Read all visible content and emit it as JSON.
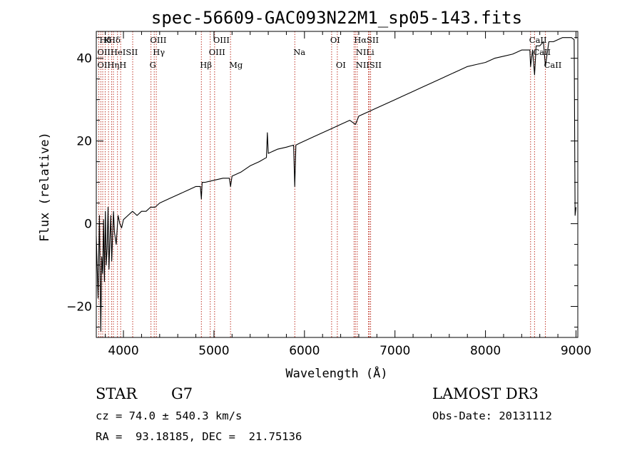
{
  "chart_data": {
    "type": "line",
    "title": "spec-56609-GAC093N22M1_sp05-143.fits",
    "xlabel": "Wavelength (Å)",
    "ylabel": "Flux (relative)",
    "xlim": [
      3700,
      9020
    ],
    "ylim": [
      -27.5,
      46.5
    ],
    "xticks": [
      4000,
      5000,
      6000,
      7000,
      8000,
      9000
    ],
    "yticks": [
      -20,
      0,
      20,
      40
    ],
    "series": [
      {
        "name": "flux",
        "x": [
          3700,
          3720,
          3735,
          3750,
          3760,
          3770,
          3780,
          3790,
          3800,
          3810,
          3820,
          3830,
          3840,
          3850,
          3860,
          3870,
          3880,
          3890,
          3900,
          3920,
          3940,
          3960,
          3980,
          4000,
          4050,
          4100,
          4150,
          4200,
          4250,
          4300,
          4350,
          4400,
          4500,
          4600,
          4700,
          4800,
          4850,
          4861,
          4870,
          4900,
          5000,
          5100,
          5170,
          5183,
          5200,
          5300,
          5400,
          5500,
          5580,
          5590,
          5600,
          5700,
          5800,
          5880,
          5893,
          5905,
          5950,
          6000,
          6100,
          6200,
          6300,
          6400,
          6500,
          6563,
          6600,
          6700,
          6800,
          6900,
          7000,
          7100,
          7200,
          7300,
          7400,
          7500,
          7600,
          7700,
          7800,
          7900,
          8000,
          8100,
          8200,
          8300,
          8400,
          8450,
          8490,
          8498,
          8520,
          8542,
          8560,
          8600,
          8640,
          8662,
          8700,
          8750,
          8800,
          8850,
          8900,
          8950,
          8980,
          8990,
          9000
        ],
        "values": [
          -3,
          -18,
          2,
          -26,
          -8,
          -12,
          1,
          -14,
          3,
          -10,
          -6,
          4,
          -11,
          -4,
          2,
          -9,
          -3,
          3,
          -2,
          -5,
          2,
          0,
          -1,
          1,
          2,
          3,
          2,
          3,
          3,
          4,
          4,
          5,
          6,
          7,
          8,
          9,
          9,
          6,
          10,
          10,
          10.5,
          11,
          11,
          9,
          11.5,
          12.5,
          14,
          15,
          16,
          22,
          17,
          18,
          18.5,
          19,
          9,
          19,
          19.5,
          20,
          21,
          22,
          23,
          24,
          25,
          24,
          26,
          27,
          28,
          29,
          30,
          31,
          32,
          33,
          34,
          35,
          36,
          37,
          38,
          38.5,
          39,
          40,
          40.5,
          41,
          42,
          42,
          42,
          38,
          42,
          36,
          43,
          43,
          44,
          38,
          44,
          44,
          44.5,
          45,
          45,
          45,
          44.5,
          2,
          4
        ]
      }
    ],
    "spectral_lines": [
      {
        "label": "Hδ",
        "wavelength": 3750,
        "row": 1
      },
      {
        "label": "K",
        "wavelength": 3800,
        "row": 1
      },
      {
        "label": "Hδ",
        "wavelength": 3850,
        "row": 1
      },
      {
        "label": "OIII",
        "wavelength": 4310,
        "row": 1
      },
      {
        "label": "OIII",
        "wavelength": 5007,
        "row": 1
      },
      {
        "label": "OI",
        "wavelength": 6300,
        "row": 1
      },
      {
        "label": "HαSII",
        "wavelength": 6563,
        "row": 1
      },
      {
        "label": "CaII",
        "wavelength": 8498,
        "row": 1
      },
      {
        "label": "OIIHeISII",
        "wavelength": 3727,
        "row": 2
      },
      {
        "label": "Hγ",
        "wavelength": 4340,
        "row": 2
      },
      {
        "label": "OIII",
        "wavelength": 4959,
        "row": 2
      },
      {
        "label": "Na",
        "wavelength": 5893,
        "row": 2
      },
      {
        "label": "NILi",
        "wavelength": 6583,
        "row": 2
      },
      {
        "label": "CaII",
        "wavelength": 8542,
        "row": 2
      },
      {
        "label": "OIHηH",
        "wavelength": 3727,
        "row": 3
      },
      {
        "label": "G",
        "wavelength": 4304,
        "row": 3
      },
      {
        "label": "Hβ",
        "wavelength": 4861,
        "row": 3
      },
      {
        "label": "Mg",
        "wavelength": 5183,
        "row": 3
      },
      {
        "label": "OI",
        "wavelength": 6363,
        "row": 3
      },
      {
        "label": "NIISII",
        "wavelength": 6583,
        "row": 3
      },
      {
        "label": "CaII",
        "wavelength": 8662,
        "row": 3
      }
    ],
    "line_markers": [
      3727,
      3750,
      3771,
      3798,
      3835,
      3869,
      3889,
      3934,
      3969,
      4102,
      4304,
      4340,
      4363,
      4861,
      4959,
      5007,
      5183,
      5893,
      6300,
      6363,
      6548,
      6563,
      6583,
      6707,
      6717,
      6731,
      8498,
      8542,
      8662
    ]
  },
  "info": {
    "object_class": "STAR",
    "subclass": "G7",
    "survey": "LAMOST DR3",
    "cz": "cz = 74.0 ± 540.3 km/s",
    "obs_date": "Obs-Date: 20131112",
    "coords": "RA =  93.18185, DEC =  21.75136"
  }
}
